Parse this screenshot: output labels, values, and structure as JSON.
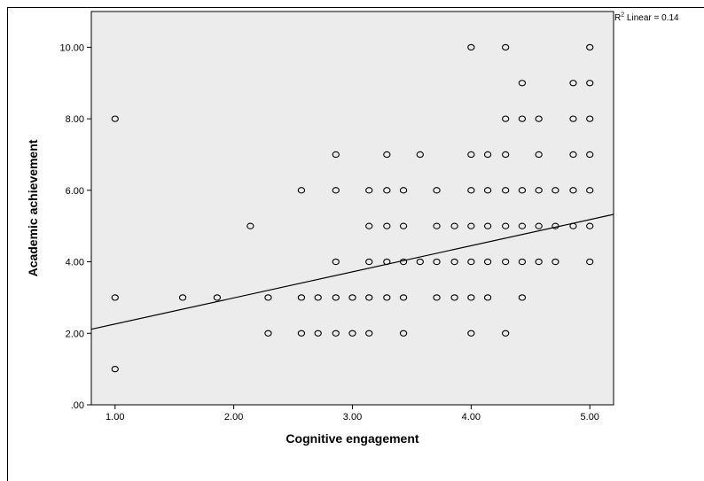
{
  "annotation": {
    "r2_prefix": "R",
    "r2_sup": "2",
    "r2_text": " Linear = 0.14"
  },
  "colors": {
    "plot_background": "#ececec",
    "marker_stroke": "#000000",
    "fit_line": "#000000"
  },
  "chart_data": {
    "type": "scatter",
    "xlabel": "Cognitive engagement",
    "ylabel": "Academic achievement",
    "xlim": [
      0.8,
      5.2
    ],
    "ylim": [
      0,
      11.0
    ],
    "x_ticks": [
      1.0,
      2.0,
      3.0,
      4.0,
      5.0
    ],
    "x_tick_labels": [
      "1.00",
      "2.00",
      "3.00",
      "4.00",
      "5.00"
    ],
    "y_ticks": [
      0,
      2,
      4,
      6,
      8,
      10
    ],
    "y_tick_labels": [
      ".00",
      "2.00",
      "4.00",
      "6.00",
      "8.00",
      "10.00"
    ],
    "grid": false,
    "marker": "open-circle",
    "fit_line": {
      "type": "linear",
      "intercept": 1.53,
      "slope": 0.73,
      "r2_label": "R2 Linear = 0.14"
    },
    "points": [
      [
        1.0,
        8
      ],
      [
        1.0,
        3
      ],
      [
        1.0,
        1
      ],
      [
        1.57,
        3
      ],
      [
        1.86,
        3
      ],
      [
        2.14,
        5
      ],
      [
        2.29,
        3
      ],
      [
        2.29,
        2
      ],
      [
        2.57,
        6
      ],
      [
        2.57,
        3
      ],
      [
        2.57,
        2
      ],
      [
        2.71,
        3
      ],
      [
        2.71,
        2
      ],
      [
        2.86,
        7
      ],
      [
        2.86,
        6
      ],
      [
        2.86,
        4
      ],
      [
        2.86,
        3
      ],
      [
        2.86,
        2
      ],
      [
        3.0,
        3
      ],
      [
        3.0,
        2
      ],
      [
        3.14,
        6
      ],
      [
        3.14,
        5
      ],
      [
        3.14,
        4
      ],
      [
        3.14,
        3
      ],
      [
        3.14,
        2
      ],
      [
        3.29,
        7
      ],
      [
        3.29,
        6
      ],
      [
        3.29,
        5
      ],
      [
        3.29,
        4
      ],
      [
        3.29,
        3
      ],
      [
        3.43,
        6
      ],
      [
        3.43,
        5
      ],
      [
        3.43,
        4
      ],
      [
        3.43,
        3
      ],
      [
        3.43,
        2
      ],
      [
        3.57,
        7
      ],
      [
        3.57,
        4
      ],
      [
        3.71,
        6
      ],
      [
        3.71,
        5
      ],
      [
        3.71,
        4
      ],
      [
        3.71,
        3
      ],
      [
        3.86,
        5
      ],
      [
        3.86,
        4
      ],
      [
        3.86,
        3
      ],
      [
        4.0,
        10
      ],
      [
        4.0,
        7
      ],
      [
        4.0,
        6
      ],
      [
        4.0,
        5
      ],
      [
        4.0,
        4
      ],
      [
        4.0,
        3
      ],
      [
        4.0,
        2
      ],
      [
        4.14,
        7
      ],
      [
        4.14,
        6
      ],
      [
        4.14,
        5
      ],
      [
        4.14,
        4
      ],
      [
        4.14,
        3
      ],
      [
        4.29,
        10
      ],
      [
        4.29,
        8
      ],
      [
        4.29,
        7
      ],
      [
        4.29,
        6
      ],
      [
        4.29,
        5
      ],
      [
        4.29,
        4
      ],
      [
        4.29,
        2
      ],
      [
        4.43,
        9
      ],
      [
        4.43,
        8
      ],
      [
        4.43,
        6
      ],
      [
        4.43,
        5
      ],
      [
        4.43,
        4
      ],
      [
        4.43,
        3
      ],
      [
        4.57,
        8
      ],
      [
        4.57,
        7
      ],
      [
        4.57,
        6
      ],
      [
        4.57,
        5
      ],
      [
        4.57,
        4
      ],
      [
        4.71,
        6
      ],
      [
        4.71,
        5
      ],
      [
        4.71,
        4
      ],
      [
        4.86,
        9
      ],
      [
        4.86,
        8
      ],
      [
        4.86,
        7
      ],
      [
        4.86,
        6
      ],
      [
        4.86,
        5
      ],
      [
        5.0,
        10
      ],
      [
        5.0,
        9
      ],
      [
        5.0,
        8
      ],
      [
        5.0,
        7
      ],
      [
        5.0,
        6
      ],
      [
        5.0,
        5
      ],
      [
        5.0,
        4
      ]
    ]
  }
}
